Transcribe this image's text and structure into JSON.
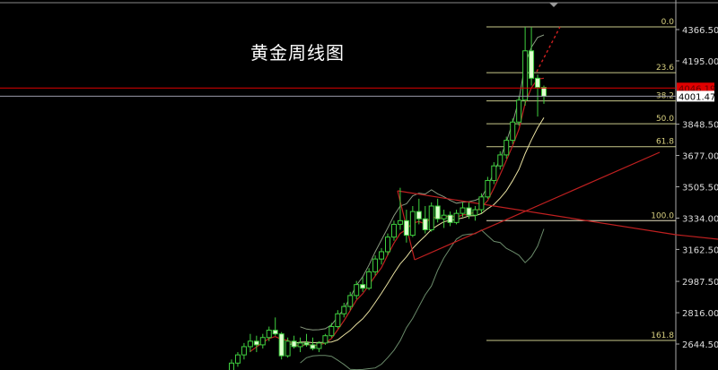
{
  "chart_data": {
    "type": "candlestick",
    "title": "黄金周线图",
    "ylim": [
      2560,
      4420
    ],
    "y_ticks": [
      "4366.50",
      "4195.00",
      "3848.50",
      "3677.00",
      "3505.50",
      "3334.00",
      "3162.50",
      "2987.50",
      "2816.00",
      "2644.50"
    ],
    "price_labels": [
      {
        "value": "4046.19",
        "price": 4046.19,
        "color": "#e00000"
      },
      {
        "value": "4001.47",
        "price": 4001.47,
        "color": "#ffffff"
      }
    ],
    "fibonacci": {
      "high": 4381,
      "low": 3320,
      "levels": [
        {
          "label": "0.0",
          "ratio": 0.0
        },
        {
          "label": "23.6",
          "ratio": 0.236
        },
        {
          "label": "38.2",
          "ratio": 0.382
        },
        {
          "label": "50.0",
          "ratio": 0.5
        },
        {
          "label": "61.8",
          "ratio": 0.618
        },
        {
          "label": "100.0",
          "ratio": 1.0
        },
        {
          "label": "161.8",
          "ratio": 1.618
        }
      ]
    },
    "candles": [
      [
        2490,
        2560,
        2470,
        2540
      ],
      [
        2540,
        2600,
        2520,
        2585
      ],
      [
        2585,
        2650,
        2560,
        2630
      ],
      [
        2630,
        2700,
        2600,
        2660
      ],
      [
        2660,
        2690,
        2600,
        2640
      ],
      [
        2640,
        2700,
        2620,
        2680
      ],
      [
        2680,
        2740,
        2660,
        2720
      ],
      [
        2720,
        2790,
        2690,
        2700
      ],
      [
        2700,
        2710,
        2560,
        2580
      ],
      [
        2580,
        2680,
        2570,
        2660
      ],
      [
        2660,
        2690,
        2620,
        2630
      ],
      [
        2630,
        2680,
        2600,
        2650
      ],
      [
        2650,
        2700,
        2630,
        2640
      ],
      [
        2640,
        2680,
        2610,
        2620
      ],
      [
        2620,
        2660,
        2600,
        2650
      ],
      [
        2650,
        2700,
        2640,
        2690
      ],
      [
        2690,
        2760,
        2680,
        2740
      ],
      [
        2740,
        2830,
        2730,
        2810
      ],
      [
        2810,
        2870,
        2790,
        2850
      ],
      [
        2850,
        2930,
        2830,
        2910
      ],
      [
        2910,
        2990,
        2890,
        2970
      ],
      [
        2970,
        3010,
        2930,
        2950
      ],
      [
        2950,
        3060,
        2940,
        3040
      ],
      [
        3040,
        3130,
        3020,
        3110
      ],
      [
        3110,
        3170,
        3080,
        3150
      ],
      [
        3150,
        3250,
        3130,
        3230
      ],
      [
        3230,
        3320,
        3210,
        3300
      ],
      [
        3300,
        3500,
        3270,
        3320
      ],
      [
        3320,
        3380,
        3200,
        3240
      ],
      [
        3240,
        3400,
        3230,
        3370
      ],
      [
        3370,
        3440,
        3300,
        3330
      ],
      [
        3330,
        3400,
        3250,
        3270
      ],
      [
        3270,
        3420,
        3260,
        3400
      ],
      [
        3400,
        3440,
        3310,
        3330
      ],
      [
        3330,
        3380,
        3280,
        3350
      ],
      [
        3350,
        3370,
        3290,
        3310
      ],
      [
        3310,
        3380,
        3300,
        3360
      ],
      [
        3360,
        3420,
        3340,
        3390
      ],
      [
        3390,
        3420,
        3330,
        3350
      ],
      [
        3350,
        3400,
        3320,
        3380
      ],
      [
        3380,
        3470,
        3360,
        3450
      ],
      [
        3450,
        3560,
        3440,
        3540
      ],
      [
        3540,
        3640,
        3520,
        3620
      ],
      [
        3620,
        3700,
        3600,
        3680
      ],
      [
        3680,
        3780,
        3660,
        3760
      ],
      [
        3760,
        3880,
        3740,
        3860
      ],
      [
        3860,
        4000,
        3840,
        3980
      ],
      [
        3980,
        4381,
        3950,
        4250
      ],
      [
        4250,
        4381,
        4060,
        4100
      ],
      [
        4100,
        4120,
        3890,
        4050
      ],
      [
        4050,
        4060,
        3960,
        4001
      ]
    ]
  }
}
